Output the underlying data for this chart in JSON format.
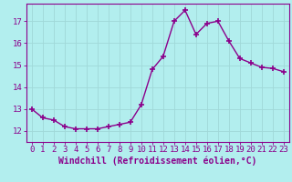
{
  "x": [
    0,
    1,
    2,
    3,
    4,
    5,
    6,
    7,
    8,
    9,
    10,
    11,
    12,
    13,
    14,
    15,
    16,
    17,
    18,
    19,
    20,
    21,
    22,
    23
  ],
  "y": [
    13.0,
    12.6,
    12.5,
    12.2,
    12.1,
    12.1,
    12.1,
    12.2,
    12.3,
    12.4,
    13.2,
    14.8,
    15.4,
    17.0,
    17.5,
    16.4,
    16.9,
    17.0,
    16.1,
    15.3,
    15.1,
    14.9,
    14.85,
    14.7
  ],
  "line_color": "#8b008b",
  "marker": "+",
  "marker_size": 4,
  "bg_color": "#b2eeee",
  "grid_color": "#a0d8d8",
  "xlabel": "Windchill (Refroidissement éolien,°C)",
  "ylabel": "",
  "ylim": [
    11.5,
    17.8
  ],
  "xlim": [
    -0.5,
    23.5
  ],
  "yticks": [
    12,
    13,
    14,
    15,
    16,
    17
  ],
  "xticks": [
    0,
    1,
    2,
    3,
    4,
    5,
    6,
    7,
    8,
    9,
    10,
    11,
    12,
    13,
    14,
    15,
    16,
    17,
    18,
    19,
    20,
    21,
    22,
    23
  ],
  "tick_label_size": 6.5,
  "xlabel_size": 7,
  "line_width": 1.0,
  "spine_color": "#8b008b",
  "marker_color": "#8b008b"
}
